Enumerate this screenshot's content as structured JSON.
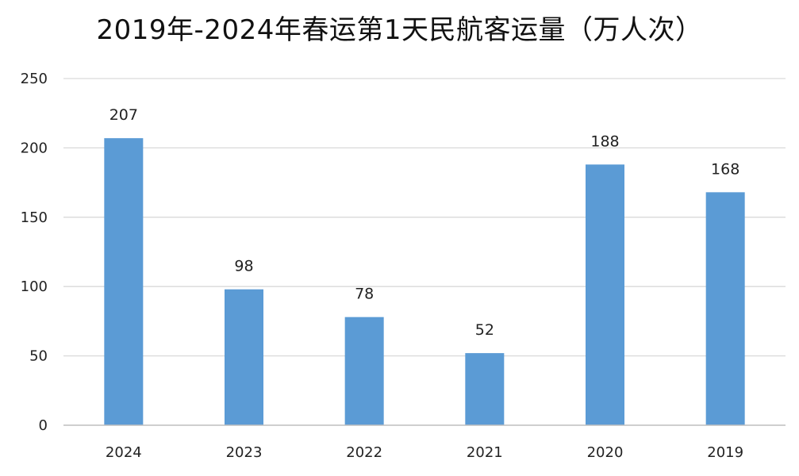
{
  "chart_data": {
    "type": "bar",
    "title": "2019年-2024年春运第1天民航客运量（万人次）",
    "categories": [
      "2024",
      "2023",
      "2022",
      "2021",
      "2020",
      "2019"
    ],
    "values": [
      207,
      98,
      78,
      52,
      188,
      168
    ],
    "data_labels": [
      "207",
      "98",
      "78",
      "52",
      "188",
      "168"
    ],
    "xlabel": "",
    "ylabel": "",
    "ylim": [
      0,
      250
    ],
    "yticks": [
      0,
      50,
      100,
      150,
      200,
      250
    ],
    "ytick_labels": [
      "0",
      "50",
      "100",
      "150",
      "200",
      "250"
    ],
    "grid": true,
    "legend": "none",
    "colors": {
      "bar": "#5b9bd5",
      "grid": "#d9d9d9",
      "axis": "#bfbfbf",
      "text": "#222222"
    }
  }
}
